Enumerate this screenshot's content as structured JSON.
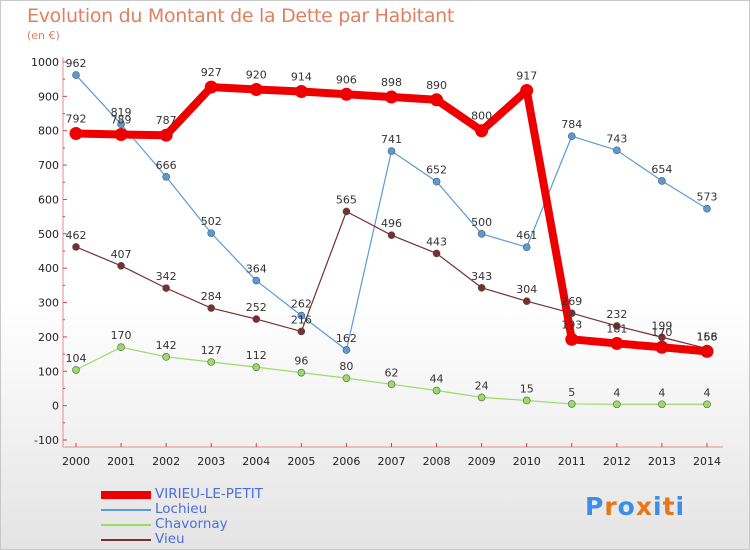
{
  "header": {
    "title": "Evolution du Montant de la Dette par Habitant",
    "unit": "(en €)"
  },
  "brand": {
    "text": "Proxiti",
    "colors": [
      "#3d8ee6",
      "#e8751a",
      "#3d8ee6",
      "#e8751a",
      "#3d8ee6",
      "#e8751a",
      "#3d8ee6"
    ]
  },
  "chart_data": {
    "type": "line",
    "ylim": [
      -100,
      1000
    ],
    "yticks": [
      -100,
      0,
      100,
      200,
      300,
      400,
      500,
      600,
      700,
      800,
      900,
      1000
    ],
    "x": [
      2000,
      2001,
      2002,
      2003,
      2004,
      2005,
      2006,
      2007,
      2008,
      2009,
      2010,
      2011,
      2012,
      2013,
      2014
    ],
    "grid": false,
    "legend_position": "bottom-left",
    "series": [
      {
        "name": "VIRIEU-LE-PETIT",
        "color": "#ee0000",
        "values": [
          792,
          789,
          787,
          927,
          920,
          914,
          906,
          898,
          890,
          800,
          917,
          193,
          181,
          170,
          158
        ]
      },
      {
        "name": "Lochieu",
        "color": "#5b9bd5",
        "values": [
          962,
          819,
          666,
          502,
          364,
          262,
          162,
          741,
          652,
          500,
          461,
          784,
          743,
          654,
          573
        ]
      },
      {
        "name": "Chavornay",
        "color": "#99dd66",
        "values": [
          104,
          170,
          142,
          127,
          112,
          96,
          80,
          62,
          44,
          24,
          15,
          5,
          4,
          4,
          4
        ]
      },
      {
        "name": "Vieu",
        "color": "#7a2e2e",
        "values": [
          462,
          407,
          342,
          284,
          252,
          216,
          565,
          496,
          443,
          343,
          304,
          269,
          232,
          199,
          166
        ]
      }
    ]
  }
}
